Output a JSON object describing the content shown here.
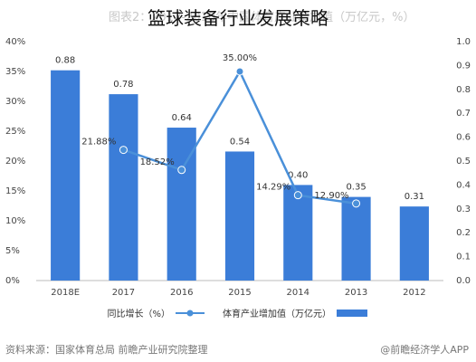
{
  "title": "篮球装备行业发展策略",
  "background_text": "图表2：2012-2018年中国体育产业增加值（万亿元，%）",
  "source_left": "资料来源：国家体育总局 前瞻产业研究院整理",
  "source_right": "@前瞻经济学人APP",
  "colors": {
    "bar": "#3b7dd8",
    "line": "#4a90d9",
    "axis_text": "#444444",
    "grid": "#e6e6e6"
  },
  "chart_data": {
    "type": "bar",
    "categories": [
      "2018E",
      "2017",
      "2016",
      "2015",
      "2014",
      "2013",
      "2012"
    ],
    "series": [
      {
        "name": "体育产业增加值（万亿元）",
        "type": "bar",
        "axis": "right",
        "values": [
          0.88,
          0.78,
          0.64,
          0.54,
          0.4,
          0.35,
          0.31
        ],
        "labels": [
          "0.88",
          "0.78",
          "0.64",
          "0.54",
          "0.40",
          "0.35",
          "0.31"
        ]
      },
      {
        "name": "同比增长（%）",
        "type": "line",
        "axis": "left",
        "values": [
          null,
          21.88,
          18.52,
          35.0,
          14.29,
          12.9,
          null
        ],
        "labels": [
          "",
          "21.88%",
          "18.52%",
          "35.00%",
          "14.29%",
          "12.90%",
          ""
        ]
      }
    ],
    "left_axis": {
      "ticks": [
        "0%",
        "5%",
        "10%",
        "15%",
        "20%",
        "25%",
        "30%",
        "35%",
        "40%"
      ],
      "ylim": [
        0,
        40
      ]
    },
    "right_axis": {
      "ticks": [
        "0.0",
        "0.1",
        "0.2",
        "0.3",
        "0.4",
        "0.5",
        "0.6",
        "0.7",
        "0.8",
        "0.9",
        "1.0"
      ],
      "ylim": [
        0,
        1.0
      ]
    },
    "legend_position": "bottom",
    "grid": false
  }
}
